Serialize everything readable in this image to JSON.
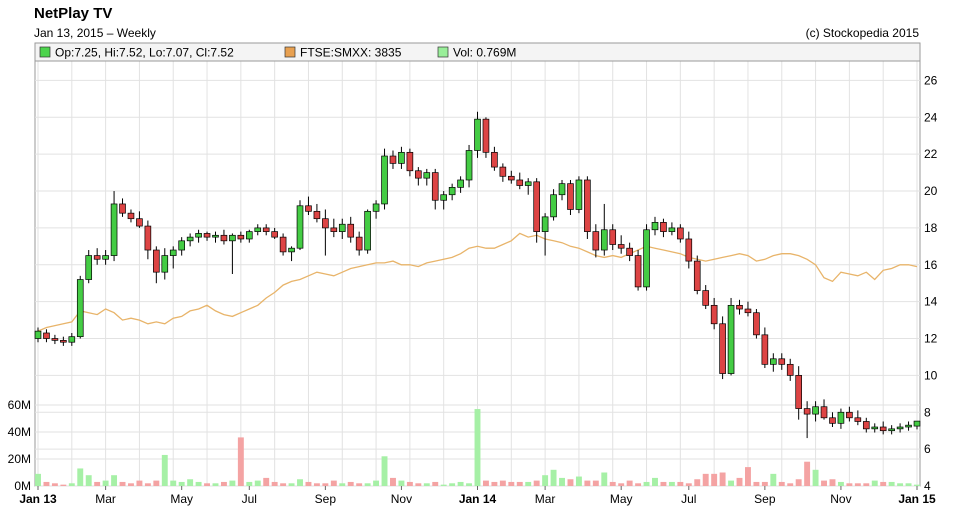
{
  "header": {
    "title": "NetPlay TV",
    "subtitle": "Jan 13, 2015 – Weekly",
    "copyright": "(c) Stockopedia 2015"
  },
  "legend": [
    {
      "label": "Op:7.25, Hi:7.52, Lo:7.07, Cl:7.52",
      "color": "#4cd44c"
    },
    {
      "label": "FTSE:SMXX: 3835",
      "color": "#e8a050"
    },
    {
      "label": "Vol: 0.769M",
      "color": "#99ee99"
    }
  ],
  "colors": {
    "up": "#44cc44",
    "down": "#dd4444",
    "index_line": "#e8b46a",
    "vol_up": "#a6f0a6",
    "vol_down": "#f4a3a3",
    "grid": "#e2e2e2"
  },
  "chart_data": {
    "type": "candlestick",
    "price_axis": {
      "ylim": [
        4,
        27
      ],
      "ticks": [
        "4",
        "6",
        "8",
        "10",
        "12",
        "14",
        "16",
        "18",
        "20",
        "22",
        "24",
        "26"
      ]
    },
    "volume_axis": {
      "ylim": [
        0,
        60
      ],
      "ticks": [
        "0M",
        "20M",
        "40M",
        "60M"
      ],
      "unit": "M"
    },
    "x_ticks": [
      {
        "label": "Jan 13",
        "week": 0,
        "bold": true
      },
      {
        "label": "Mar",
        "week": 8,
        "bold": false
      },
      {
        "label": "May",
        "week": 17,
        "bold": false
      },
      {
        "label": "Jul",
        "week": 25,
        "bold": false
      },
      {
        "label": "Sep",
        "week": 34,
        "bold": false
      },
      {
        "label": "Nov",
        "week": 43,
        "bold": false
      },
      {
        "label": "Jan 14",
        "week": 52,
        "bold": true
      },
      {
        "label": "Mar",
        "week": 60,
        "bold": false
      },
      {
        "label": "May",
        "week": 69,
        "bold": false
      },
      {
        "label": "Jul",
        "week": 77,
        "bold": false
      },
      {
        "label": "Sep",
        "week": 86,
        "bold": false
      },
      {
        "label": "Nov",
        "week": 95,
        "bold": false
      },
      {
        "label": "Jan 15",
        "week": 104,
        "bold": true
      }
    ],
    "candles": [
      [
        12.0,
        12.6,
        11.8,
        12.4
      ],
      [
        12.3,
        12.5,
        11.8,
        12.0
      ],
      [
        12.0,
        12.2,
        11.7,
        11.9
      ],
      [
        11.9,
        12.1,
        11.6,
        11.8
      ],
      [
        11.8,
        12.3,
        11.6,
        12.1
      ],
      [
        12.1,
        15.4,
        12.0,
        15.2
      ],
      [
        15.2,
        16.8,
        15.0,
        16.5
      ],
      [
        16.5,
        16.9,
        16.0,
        16.3
      ],
      [
        16.3,
        16.8,
        16.0,
        16.5
      ],
      [
        16.5,
        20.0,
        16.2,
        19.3
      ],
      [
        19.3,
        19.6,
        18.6,
        18.8
      ],
      [
        18.8,
        19.0,
        18.3,
        18.5
      ],
      [
        18.5,
        18.9,
        18.0,
        18.1
      ],
      [
        18.1,
        18.4,
        16.3,
        16.8
      ],
      [
        16.8,
        17.0,
        15.0,
        15.6
      ],
      [
        15.6,
        16.9,
        15.2,
        16.5
      ],
      [
        16.5,
        17.0,
        15.8,
        16.8
      ],
      [
        16.8,
        17.5,
        16.5,
        17.3
      ],
      [
        17.3,
        17.7,
        17.0,
        17.5
      ],
      [
        17.5,
        17.9,
        17.2,
        17.7
      ],
      [
        17.7,
        17.8,
        17.3,
        17.5
      ],
      [
        17.5,
        17.8,
        17.2,
        17.6
      ],
      [
        17.6,
        17.9,
        17.1,
        17.3
      ],
      [
        17.3,
        17.7,
        15.5,
        17.6
      ],
      [
        17.6,
        17.8,
        17.2,
        17.4
      ],
      [
        17.4,
        17.9,
        17.2,
        17.8
      ],
      [
        17.8,
        18.2,
        17.6,
        18.0
      ],
      [
        18.0,
        18.2,
        17.6,
        17.8
      ],
      [
        17.8,
        18.0,
        17.4,
        17.5
      ],
      [
        17.5,
        17.7,
        16.5,
        16.7
      ],
      [
        16.7,
        17.0,
        16.2,
        16.9
      ],
      [
        16.9,
        19.5,
        16.8,
        19.2
      ],
      [
        19.2,
        19.7,
        18.7,
        18.9
      ],
      [
        18.9,
        19.3,
        18.3,
        18.5
      ],
      [
        18.5,
        19.0,
        16.5,
        18.0
      ],
      [
        18.0,
        18.5,
        17.5,
        17.8
      ],
      [
        17.8,
        18.5,
        17.4,
        18.2
      ],
      [
        18.2,
        18.6,
        17.2,
        17.5
      ],
      [
        17.5,
        17.8,
        16.5,
        16.8
      ],
      [
        16.8,
        19.0,
        16.6,
        18.9
      ],
      [
        18.9,
        19.5,
        18.5,
        19.3
      ],
      [
        19.3,
        22.3,
        19.0,
        21.9
      ],
      [
        21.9,
        22.2,
        21.2,
        21.5
      ],
      [
        21.5,
        22.4,
        21.2,
        22.1
      ],
      [
        22.1,
        22.3,
        20.8,
        21.1
      ],
      [
        21.1,
        21.3,
        20.3,
        20.7
      ],
      [
        20.7,
        21.2,
        20.3,
        21.0
      ],
      [
        21.0,
        21.2,
        19.0,
        19.5
      ],
      [
        19.5,
        20.0,
        19.0,
        19.8
      ],
      [
        19.8,
        20.4,
        19.5,
        20.2
      ],
      [
        20.2,
        20.8,
        19.9,
        20.6
      ],
      [
        20.6,
        22.5,
        20.2,
        22.2
      ],
      [
        22.2,
        24.3,
        21.8,
        23.9
      ],
      [
        23.9,
        24.0,
        21.8,
        22.1
      ],
      [
        22.1,
        22.4,
        21.1,
        21.3
      ],
      [
        21.3,
        21.5,
        20.5,
        20.8
      ],
      [
        20.8,
        21.1,
        20.4,
        20.6
      ],
      [
        20.6,
        21.0,
        20.1,
        20.3
      ],
      [
        20.3,
        20.7,
        19.8,
        20.5
      ],
      [
        20.5,
        20.7,
        17.2,
        17.8
      ],
      [
        17.8,
        18.8,
        16.5,
        18.6
      ],
      [
        18.6,
        20.1,
        18.4,
        19.8
      ],
      [
        19.8,
        20.6,
        19.5,
        20.4
      ],
      [
        20.4,
        20.6,
        18.7,
        19.0
      ],
      [
        19.0,
        20.8,
        18.8,
        20.6
      ],
      [
        20.6,
        20.8,
        17.4,
        17.8
      ],
      [
        17.8,
        18.2,
        16.4,
        16.8
      ],
      [
        16.8,
        19.3,
        16.5,
        17.9
      ],
      [
        17.9,
        18.2,
        16.8,
        17.1
      ],
      [
        17.1,
        17.6,
        16.6,
        16.9
      ],
      [
        16.9,
        17.2,
        16.2,
        16.5
      ],
      [
        16.5,
        16.8,
        14.6,
        14.8
      ],
      [
        14.8,
        18.2,
        14.6,
        17.9
      ],
      [
        17.9,
        18.6,
        17.6,
        18.3
      ],
      [
        18.3,
        18.5,
        17.5,
        17.8
      ],
      [
        17.8,
        18.3,
        17.6,
        18.0
      ],
      [
        18.0,
        18.2,
        17.2,
        17.4
      ],
      [
        17.4,
        17.8,
        15.8,
        16.2
      ],
      [
        16.2,
        16.5,
        14.4,
        14.6
      ],
      [
        14.6,
        14.9,
        13.6,
        13.8
      ],
      [
        13.8,
        14.2,
        12.5,
        12.8
      ],
      [
        12.8,
        13.2,
        9.8,
        10.1
      ],
      [
        10.1,
        14.2,
        10.0,
        13.8
      ],
      [
        13.8,
        14.1,
        13.3,
        13.6
      ],
      [
        13.6,
        14.0,
        13.2,
        13.4
      ],
      [
        13.4,
        13.6,
        12.0,
        12.2
      ],
      [
        12.2,
        12.6,
        10.4,
        10.6
      ],
      [
        10.6,
        11.2,
        10.2,
        10.9
      ],
      [
        10.9,
        11.2,
        10.3,
        10.6
      ],
      [
        10.6,
        10.9,
        9.7,
        10.0
      ],
      [
        10.0,
        10.5,
        7.6,
        8.2
      ],
      [
        8.2,
        8.6,
        6.6,
        7.9
      ],
      [
        7.9,
        8.6,
        7.5,
        8.3
      ],
      [
        8.3,
        8.7,
        7.6,
        7.7
      ],
      [
        7.7,
        8.0,
        7.2,
        7.4
      ],
      [
        7.4,
        8.2,
        7.1,
        8.0
      ],
      [
        8.0,
        8.3,
        7.5,
        7.7
      ],
      [
        7.7,
        8.1,
        7.3,
        7.5
      ],
      [
        7.5,
        7.7,
        6.9,
        7.1
      ],
      [
        7.1,
        7.4,
        6.9,
        7.2
      ],
      [
        7.2,
        7.5,
        6.8,
        7.0
      ],
      [
        7.0,
        7.3,
        6.8,
        7.1
      ],
      [
        7.1,
        7.4,
        6.9,
        7.2
      ],
      [
        7.2,
        7.5,
        7.0,
        7.3
      ],
      [
        7.25,
        7.52,
        7.07,
        7.52
      ]
    ],
    "index_line": [
      12.4,
      12.6,
      12.7,
      12.8,
      12.9,
      13.5,
      13.4,
      13.3,
      13.6,
      13.4,
      13.0,
      13.1,
      13.0,
      12.8,
      12.9,
      12.8,
      13.1,
      13.2,
      13.5,
      13.6,
      13.8,
      13.5,
      13.3,
      13.2,
      13.4,
      13.6,
      13.8,
      14.2,
      14.5,
      14.9,
      15.1,
      15.2,
      15.4,
      15.6,
      15.5,
      15.4,
      15.6,
      15.8,
      15.9,
      16.0,
      16.1,
      16.1,
      16.2,
      16.0,
      16.0,
      15.9,
      16.1,
      16.2,
      16.3,
      16.4,
      16.6,
      16.9,
      17.0,
      16.9,
      16.9,
      17.1,
      17.3,
      17.7,
      17.5,
      17.6,
      17.4,
      17.3,
      17.2,
      17.0,
      16.9,
      16.7,
      16.5,
      16.4,
      16.5,
      16.4,
      16.6,
      16.8,
      17.0,
      16.9,
      16.8,
      16.7,
      16.6,
      16.4,
      16.3,
      16.2,
      16.3,
      16.4,
      16.5,
      16.6,
      16.5,
      16.2,
      16.3,
      16.5,
      16.6,
      16.6,
      16.5,
      16.3,
      16.0,
      15.3,
      15.1,
      15.6,
      15.5,
      15.4,
      15.6,
      15.2,
      15.7,
      15.8,
      16.0,
      16.0,
      15.9
    ],
    "volume": [
      9,
      3,
      2,
      1,
      2,
      13,
      8,
      3,
      4,
      8,
      3,
      2,
      4,
      2,
      4,
      23,
      4,
      3,
      5,
      3,
      2,
      2,
      3,
      4,
      36,
      3,
      4,
      6,
      3,
      2,
      2,
      5,
      3,
      2,
      2,
      4,
      2,
      3,
      2,
      2,
      4,
      22,
      6,
      4,
      3,
      2,
      2,
      3,
      1,
      2,
      3,
      2,
      57,
      4,
      3,
      4,
      3,
      3,
      3,
      4,
      8,
      12,
      6,
      5,
      7,
      4,
      4,
      10,
      3,
      2,
      4,
      2,
      3,
      6,
      3,
      3,
      3,
      2,
      5,
      9,
      9,
      10,
      4,
      6,
      14,
      3,
      3,
      9,
      3,
      2,
      5,
      18,
      12,
      4,
      5,
      3,
      2,
      2,
      2,
      4,
      3,
      3,
      2,
      2,
      1
    ]
  }
}
